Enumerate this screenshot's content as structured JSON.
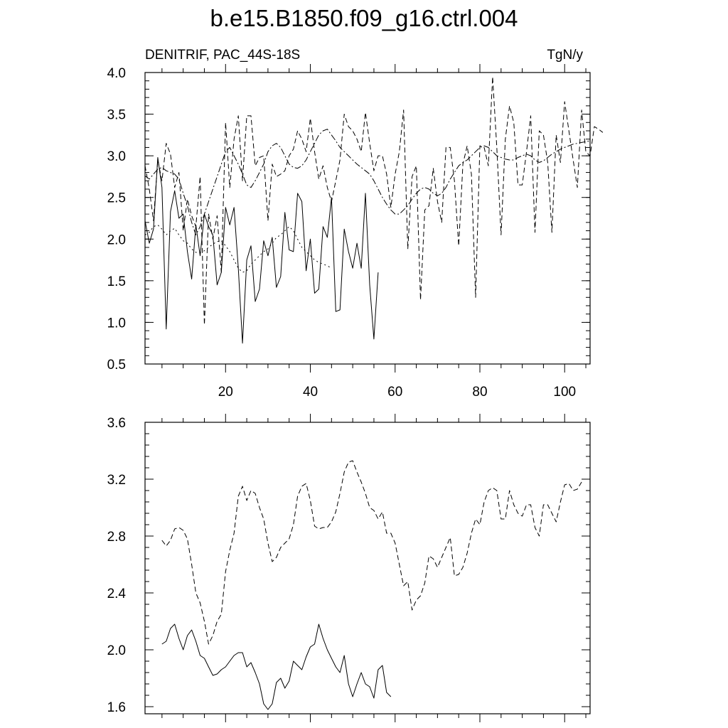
{
  "title": "b.e15.B1850.f09_g16.ctrl.004",
  "chart_data": [
    {
      "type": "line",
      "left_label": "DENITRIF, PAC_44S-18S",
      "right_label": "TgN/y",
      "xlim": [
        1,
        106
      ],
      "ylim": [
        0.5,
        4.0
      ],
      "xticks": [
        20,
        40,
        60,
        80,
        100
      ],
      "yticks": [
        0.5,
        1.0,
        1.5,
        2.0,
        2.5,
        3.0,
        3.5,
        4.0
      ],
      "ytick_labels": [
        "0.5",
        "1.0",
        "1.5",
        "2.0",
        "2.5",
        "3.0",
        "3.5",
        "4.0"
      ],
      "series": [
        {
          "style": "solid",
          "x_start": 1,
          "values": [
            2.22,
            1.95,
            2.12,
            2.98,
            2.62,
            0.92,
            2.33,
            2.58,
            2.25,
            2.3,
            1.85,
            1.52,
            2.17,
            1.8,
            2.3,
            2.15,
            2.05,
            1.45,
            1.6,
            2.38,
            2.17,
            2.38,
            1.65,
            0.75,
            1.75,
            1.92,
            1.25,
            1.4,
            1.98,
            1.8,
            2.02,
            1.42,
            1.55,
            2.32,
            1.87,
            1.85,
            2.55,
            2.45,
            1.62,
            2.0,
            1.35,
            1.4,
            2.15,
            2.02,
            2.5,
            1.13,
            1.15,
            2.12,
            1.85,
            1.65,
            1.95,
            1.65,
            2.55,
            1.45,
            0.8,
            1.6
          ]
        },
        {
          "style": "dashed",
          "x_start": 1,
          "values": [
            2.88,
            2.6,
            2.22,
            2.95,
            2.7,
            3.15,
            3.02,
            2.62,
            2.8,
            2.1,
            2.48,
            2.28,
            2.15,
            2.75,
            0.97,
            2.3,
            2.0,
            2.28,
            1.6,
            3.4,
            2.62,
            3.2,
            3.48,
            2.7,
            3.48,
            3.48,
            2.88,
            2.98,
            3.0,
            2.22,
            2.9,
            2.75,
            2.78,
            2.82,
            3.0,
            3.08,
            3.3,
            3.2,
            3.05,
            3.45,
            3.05,
            2.72,
            2.88,
            2.62,
            2.45,
            2.7,
            2.95,
            3.5,
            3.35,
            3.3,
            3.2,
            3.05,
            3.52,
            3.15,
            2.82,
            3.0,
            3.0,
            2.78,
            2.38,
            2.78,
            3.05,
            3.55,
            1.88,
            2.75,
            2.88,
            1.27,
            2.35,
            2.4,
            2.85,
            2.45,
            2.2,
            3.1,
            3.1,
            2.7,
            1.92,
            2.9,
            3.12,
            2.78,
            1.3,
            3.12,
            3.1,
            2.88,
            3.95,
            3.1,
            2.05,
            3.2,
            3.6,
            3.4,
            2.65,
            2.65,
            3.05,
            3.48,
            2.08,
            3.3,
            3.25,
            2.92,
            2.08,
            3.25,
            2.92,
            3.65,
            3.3,
            2.95,
            2.62,
            3.55,
            3.05,
            3.0,
            3.35,
            3.32,
            3.28
          ]
        },
        {
          "style": "dash-dot",
          "x_start": 1,
          "values": [
            2.05,
            2.08,
            2.15,
            2.17,
            2.12,
            2.05,
            2.1,
            2.13,
            2.05,
            1.98,
            1.95,
            1.88,
            1.84,
            1.84,
            1.86,
            1.9,
            1.94,
            1.97,
            1.98,
            1.92,
            1.85,
            1.75,
            1.65,
            1.6,
            1.62,
            1.7,
            1.75,
            1.8,
            1.85,
            1.88,
            1.95,
            2.02,
            2.05,
            2.1,
            2.15,
            2.1,
            2.0,
            1.9,
            1.85,
            1.8,
            1.75,
            1.72,
            1.7,
            1.68,
            1.65
          ]
        },
        {
          "style": "dash-dot-long",
          "x_start": 1,
          "values": [
            2.76,
            2.72,
            2.78,
            2.84,
            2.86,
            2.82,
            2.8,
            2.78,
            2.72,
            2.55,
            2.4,
            2.2,
            2.05,
            2.15,
            2.3,
            2.45,
            2.6,
            2.75,
            2.9,
            3.05,
            3.1,
            3.0,
            2.9,
            2.78,
            2.65,
            2.62,
            2.7,
            2.8,
            2.9,
            3.05,
            3.12,
            3.15,
            3.1,
            3.0,
            2.9,
            2.86,
            2.85,
            2.88,
            2.95,
            3.05,
            3.15,
            3.25,
            3.3,
            3.32,
            3.25,
            3.18,
            3.1,
            3.05,
            3.0,
            2.95,
            2.9,
            2.86,
            2.82,
            2.78,
            2.7,
            2.6,
            2.5,
            2.42,
            2.35,
            2.3,
            2.3,
            2.35,
            2.4,
            2.48,
            2.55,
            2.6,
            2.62,
            2.6,
            2.55,
            2.52,
            2.55,
            2.62,
            2.72,
            2.8,
            2.88,
            2.92,
            2.95,
            3.0,
            3.05,
            3.1,
            3.12,
            3.1,
            3.05,
            3.0,
            2.98,
            2.96,
            2.95,
            2.95,
            2.98,
            3.0,
            3.02,
            3.0,
            2.95,
            2.92,
            2.94,
            2.98,
            3.02,
            3.05,
            3.08,
            3.1,
            3.12,
            3.14,
            3.15,
            3.16,
            3.17,
            3.18
          ]
        }
      ]
    },
    {
      "type": "line",
      "xlim": [
        1,
        106
      ],
      "ylim": [
        1.55,
        3.6
      ],
      "xticks": [
        20,
        40,
        60,
        80,
        100
      ],
      "yticks": [
        1.6,
        2.0,
        2.4,
        2.8,
        3.2,
        3.6
      ],
      "ytick_labels": [
        "1.6",
        "2.0",
        "2.4",
        "2.8",
        "3.2",
        "3.6"
      ],
      "series": [
        {
          "style": "solid",
          "x_start": 5,
          "values": [
            2.04,
            2.06,
            2.15,
            2.18,
            2.08,
            2.0,
            2.1,
            2.14,
            2.06,
            1.96,
            1.94,
            1.88,
            1.82,
            1.83,
            1.86,
            1.88,
            1.92,
            1.96,
            1.98,
            1.98,
            1.88,
            1.91,
            1.84,
            1.76,
            1.62,
            1.58,
            1.62,
            1.77,
            1.8,
            1.73,
            1.78,
            1.92,
            1.89,
            1.86,
            1.95,
            2.02,
            2.04,
            2.18,
            2.08,
            2.0,
            1.94,
            1.88,
            1.84,
            1.96,
            1.76,
            1.67,
            1.76,
            1.84,
            1.76,
            1.74,
            1.66,
            1.86,
            1.89,
            1.7,
            1.67
          ]
        },
        {
          "style": "dashed",
          "x_start": 5,
          "values": [
            2.77,
            2.73,
            2.77,
            2.85,
            2.86,
            2.84,
            2.78,
            2.6,
            2.4,
            2.33,
            2.2,
            2.04,
            2.1,
            2.2,
            2.25,
            2.55,
            2.7,
            2.82,
            3.08,
            3.15,
            3.05,
            3.12,
            3.1,
            3.0,
            2.92,
            2.75,
            2.62,
            2.65,
            2.72,
            2.75,
            2.78,
            2.88,
            3.08,
            3.15,
            3.17,
            3.05,
            2.87,
            2.85,
            2.86,
            2.86,
            2.9,
            2.97,
            3.1,
            3.25,
            3.32,
            3.33,
            3.25,
            3.18,
            3.1,
            3.0,
            2.98,
            2.92,
            2.97,
            2.82,
            2.82,
            2.75,
            2.6,
            2.45,
            2.48,
            2.28,
            2.35,
            2.38,
            2.47,
            2.66,
            2.64,
            2.58,
            2.65,
            2.72,
            2.79,
            2.52,
            2.53,
            2.58,
            2.68,
            2.82,
            2.92,
            2.88,
            3.04,
            3.12,
            3.14,
            3.12,
            2.92,
            2.92,
            3.12,
            3.02,
            2.96,
            2.94,
            3.02,
            3.02,
            2.86,
            2.8,
            3.02,
            3.02,
            2.96,
            2.9,
            3.04,
            3.16,
            3.17,
            3.12,
            3.13,
            3.18
          ]
        }
      ]
    }
  ]
}
